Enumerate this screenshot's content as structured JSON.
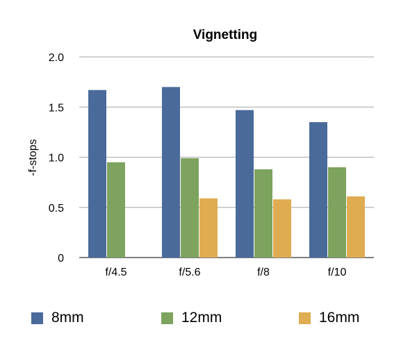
{
  "chart_data": {
    "type": "bar",
    "title": "Vignetting",
    "xlabel": "",
    "ylabel": "-f-stops",
    "ylim": [
      0,
      2.0
    ],
    "yticks": [
      "0",
      "0.5",
      "1.0",
      "1.5",
      "2.0"
    ],
    "categories": [
      "f/4.5",
      "f/5.6",
      "f/8",
      "f/10"
    ],
    "series": [
      {
        "name": "8mm",
        "color": "#4a6a9a",
        "values": [
          1.67,
          1.7,
          1.47,
          1.35
        ]
      },
      {
        "name": "12mm",
        "color": "#7da35e",
        "values": [
          0.95,
          0.99,
          0.88,
          0.9
        ]
      },
      {
        "name": "16mm",
        "color": "#e0ac52",
        "values": [
          null,
          0.59,
          0.58,
          0.61
        ]
      }
    ],
    "grid": true,
    "legend_position": "bottom"
  }
}
